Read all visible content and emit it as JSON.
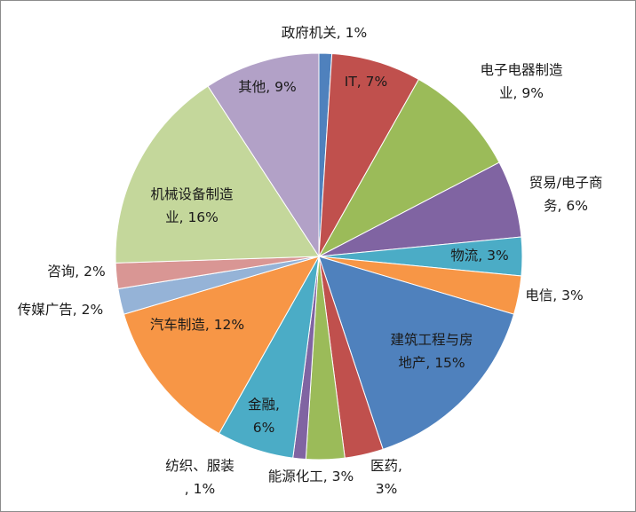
{
  "chart_data": {
    "type": "pie",
    "title": "",
    "start_angle_deg": 0,
    "direction": "clockwise",
    "slices": [
      {
        "label": "政府机关",
        "value": 1,
        "display": [
          "政府机关, 1%"
        ],
        "color": "#4f81bd"
      },
      {
        "label": "IT",
        "value": 7,
        "display": [
          "IT, 7%"
        ],
        "color": "#c0504d"
      },
      {
        "label": "电子电器制造业",
        "value": 9,
        "display": [
          "电子电器制造",
          "业, 9%"
        ],
        "color": "#9bbb59"
      },
      {
        "label": "贸易/电子商务",
        "value": 6,
        "display": [
          "贸易/电子商",
          "务, 6%"
        ],
        "color": "#8064a2"
      },
      {
        "label": "物流",
        "value": 3,
        "display": [
          "物流, 3%"
        ],
        "color": "#4bacc6"
      },
      {
        "label": "电信",
        "value": 3,
        "display": [
          "电信, 3%"
        ],
        "color": "#f79646"
      },
      {
        "label": "建筑工程与房地产",
        "value": 15,
        "display": [
          "建筑工程与房",
          "地产, 15%"
        ],
        "color": "#4f81bd"
      },
      {
        "label": "医药",
        "value": 3,
        "display": [
          "医药,",
          "3%"
        ],
        "color": "#c0504d"
      },
      {
        "label": "能源化工",
        "value": 3,
        "display": [
          "能源化工, 3%"
        ],
        "color": "#9bbb59"
      },
      {
        "label": "纺织、服装",
        "value": 1,
        "display": [
          "纺织、服装",
          ", 1%"
        ],
        "color": "#8064a2"
      },
      {
        "label": "金融",
        "value": 6,
        "display": [
          "金融,",
          "6%"
        ],
        "color": "#4bacc6"
      },
      {
        "label": "汽车制造",
        "value": 12,
        "display": [
          "汽车制造, 12%"
        ],
        "color": "#f79646"
      },
      {
        "label": "传媒广告",
        "value": 2,
        "display": [
          "传媒广告, 2%"
        ],
        "color": "#95b3d7"
      },
      {
        "label": "咨询",
        "value": 2,
        "display": [
          "咨询, 2%"
        ],
        "color": "#d99694"
      },
      {
        "label": "机械设备制造业",
        "value": 16,
        "display": [
          "机械设备制造",
          "业, 16%"
        ],
        "color": "#c4d79b"
      },
      {
        "label": "其他",
        "value": 9,
        "display": [
          "其他, 9%"
        ],
        "color": "#b2a1c7"
      }
    ]
  }
}
